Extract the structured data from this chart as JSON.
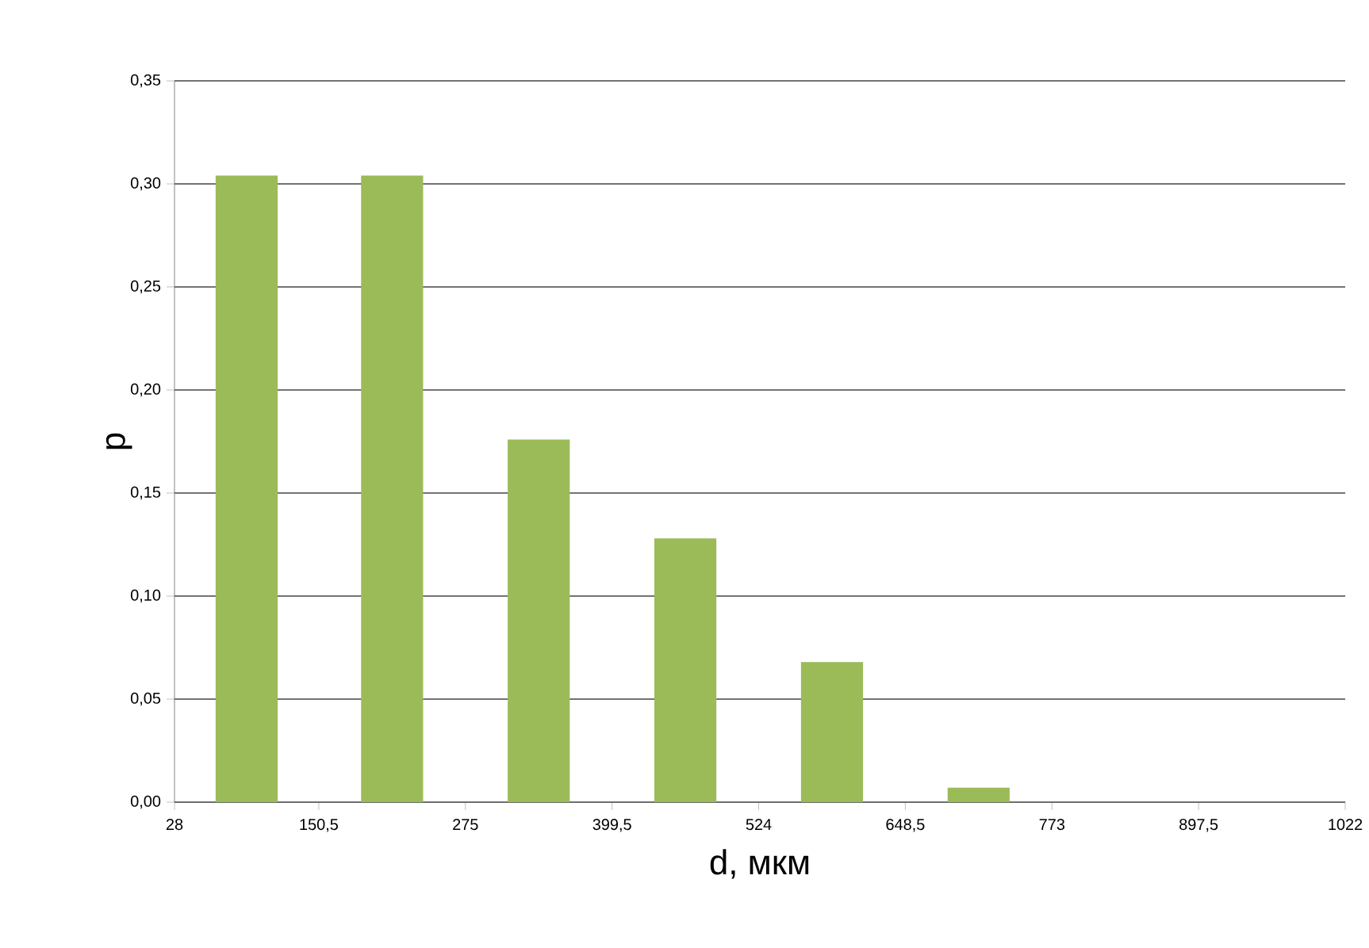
{
  "chart_data": {
    "type": "histogram",
    "xlabel": "d, мкм",
    "ylabel": "p",
    "bins": [
      28,
      150.5,
      275,
      399.5,
      524,
      648.5,
      773
    ],
    "values": [
      0.304,
      0.304,
      0.176,
      0.128,
      0.068,
      0.007
    ],
    "color": "#9bbb59",
    "xlim": [
      28,
      1022
    ],
    "xticks": [
      28,
      {
        "value": 150.5,
        "label": "150,5"
      },
      275,
      {
        "value": 399.5,
        "label": "399,5"
      },
      524,
      {
        "value": 648.5,
        "label": "648,5"
      },
      773,
      {
        "value": 897.5,
        "label": "897,5"
      },
      1022
    ],
    "ylim": [
      0,
      0.35
    ],
    "yticks": [
      {
        "value": 0,
        "label": "0,00"
      },
      {
        "value": 0.05,
        "label": "0,05"
      },
      {
        "value": 0.1,
        "label": "0,10"
      },
      {
        "value": 0.15,
        "label": "0,15"
      },
      {
        "value": 0.2,
        "label": "0,20"
      },
      {
        "value": 0.25,
        "label": "0,25"
      },
      {
        "value": 0.3,
        "label": "0,30"
      },
      {
        "value": 0.35,
        "label": "0,35"
      }
    ],
    "grid": "y"
  }
}
